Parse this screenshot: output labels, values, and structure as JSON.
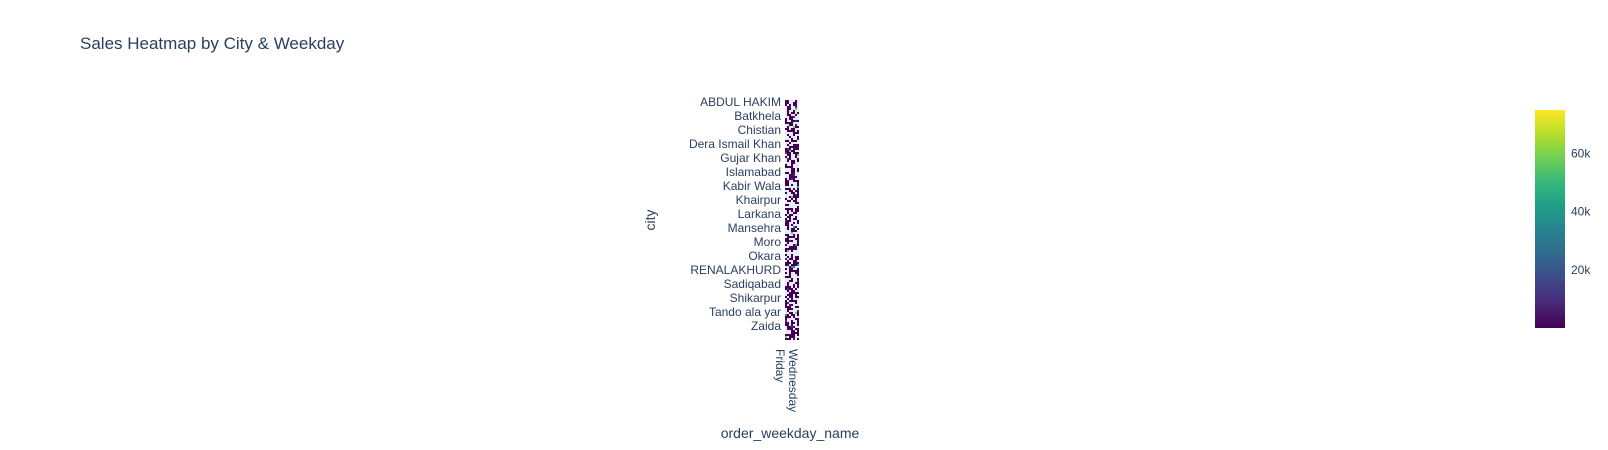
{
  "chart_data": {
    "type": "heatmap",
    "title": "Sales Heatmap by City & Weekday",
    "xlabel": "order_weekday_name",
    "ylabel": "city",
    "x_tick_labels": [
      "Friday",
      "Wednesday"
    ],
    "y_tick_labels": [
      "ABDUL HAKIM",
      "Batkhela",
      "Chistian",
      "Dera Ismail Khan",
      "Gujar Khan",
      "Islamabad",
      "Kabir Wala",
      "Khairpur",
      "Larkana",
      "Mansehra",
      "Moro",
      "Okara",
      "RENALAKHURD",
      "Sadiqabad",
      "Shikarpur",
      "Tando ala yar",
      "Zaida"
    ],
    "colorscale": "Viridis",
    "colorscale_colors": [
      "#440154",
      "#482878",
      "#3e4989",
      "#31688e",
      "#26828e",
      "#1f9e89",
      "#35b779",
      "#6ece58",
      "#b5de2b",
      "#fde725"
    ],
    "missing_color": "#e5ecf6",
    "colorbar": {
      "min": 0,
      "max": 75000,
      "tick_values": [
        20000,
        40000,
        60000
      ],
      "tick_labels": [
        "20k",
        "40k",
        "60k"
      ]
    }
  }
}
